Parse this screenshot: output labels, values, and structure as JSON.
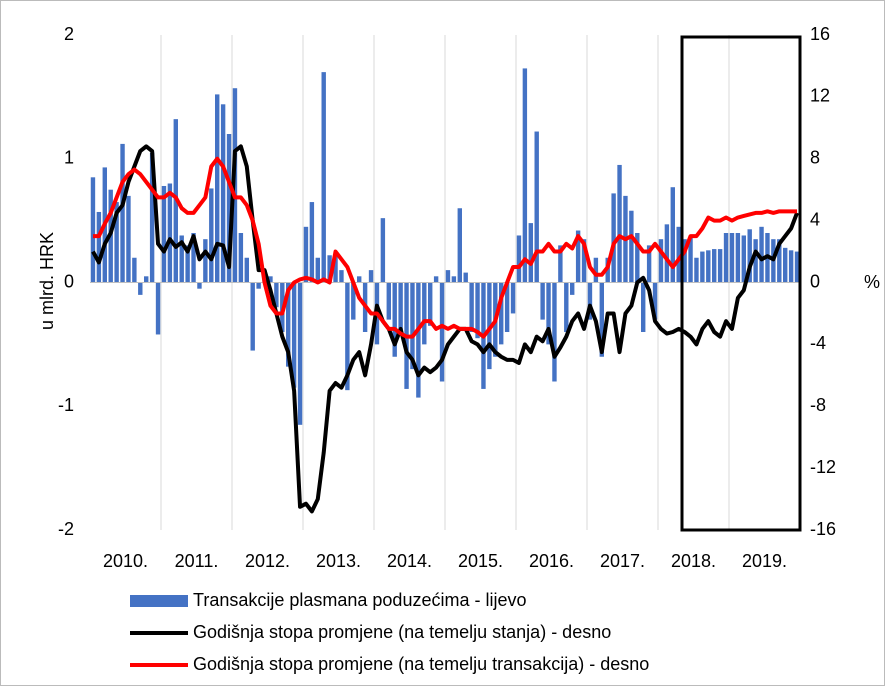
{
  "chart_data": {
    "type": "bar_line",
    "y_label": "u mlrd. HRK",
    "y2_label": "%",
    "categories": [
      null,
      null,
      null,
      null,
      null,
      null,
      "2010.",
      null,
      null,
      null,
      null,
      null,
      null,
      null,
      null,
      null,
      null,
      null,
      "2011.",
      null,
      null,
      null,
      null,
      null,
      null,
      null,
      null,
      null,
      null,
      null,
      "2012.",
      null,
      null,
      null,
      null,
      null,
      null,
      null,
      null,
      null,
      null,
      null,
      "2013.",
      null,
      null,
      null,
      null,
      null,
      null,
      null,
      null,
      null,
      null,
      null,
      "2014.",
      null,
      null,
      null,
      null,
      null,
      null,
      null,
      null,
      null,
      null,
      null,
      "2015.",
      null,
      null,
      null,
      null,
      null,
      null,
      null,
      null,
      null,
      null,
      null,
      "2016.",
      null,
      null,
      null,
      null,
      null,
      null,
      null,
      null,
      null,
      null,
      null,
      "2017.",
      null,
      null,
      null,
      null,
      null,
      null,
      null,
      null,
      null,
      null,
      null,
      "2018.",
      null,
      null,
      null,
      null,
      null,
      null,
      null,
      null,
      null,
      null,
      null,
      "2019.",
      null,
      null,
      null,
      null,
      null
    ],
    "series": [
      {
        "name": "Transakcije plasmana poduzećima - lijevo",
        "type": "bar",
        "color": "#4472c4",
        "values": [
          0.85,
          0.57,
          0.93,
          0.75,
          0.65,
          1.12,
          0.7,
          0.2,
          -0.1,
          0.05,
          1.05,
          -0.42,
          0.78,
          0.8,
          1.32,
          0.38,
          0.3,
          0.4,
          -0.05,
          0.35,
          0.76,
          1.52,
          1.44,
          1.2,
          1.57,
          0.4,
          0.2,
          -0.55,
          -0.05,
          0.1,
          0.05,
          -0.2,
          -0.4,
          -0.68,
          -0.85,
          -1.15,
          0.45,
          0.65,
          0.2,
          1.7,
          0.22,
          0.23,
          0.1,
          -0.87,
          -0.3,
          0.05,
          -0.4,
          0.1,
          -0.5,
          0.52,
          -0.3,
          -0.6,
          -0.4,
          -0.86,
          -0.7,
          -0.93,
          -0.5,
          -0.35,
          0.05,
          -0.8,
          0.1,
          0.05,
          0.6,
          0.08,
          -0.4,
          -0.45,
          -0.86,
          -0.7,
          -0.6,
          -0.5,
          -0.4,
          -0.25,
          0.38,
          1.73,
          0.48,
          1.22,
          -0.3,
          -0.5,
          -0.8,
          0.3,
          -0.4,
          -0.1,
          0.42,
          0.35,
          -0.3,
          0.2,
          -0.6,
          0.2,
          0.72,
          0.95,
          0.7,
          0.58,
          0.4,
          -0.4,
          0.3,
          -0.3,
          0.35,
          0.47,
          0.77,
          0.45,
          0.35,
          0.36,
          0.2,
          0.25,
          0.26,
          0.27,
          0.27,
          0.4,
          0.4,
          0.4,
          0.38,
          0.43,
          0.35,
          0.45,
          0.4,
          0.35,
          0.35,
          0.28,
          0.26,
          0.25
        ]
      },
      {
        "name": "Godišnja stopa promjene (na temelju stanja) - desno",
        "type": "line",
        "axis": "y2",
        "color": "#000000",
        "values": [
          2,
          1.3,
          2.5,
          3.2,
          4.5,
          5,
          6.5,
          7.5,
          8.5,
          8.8,
          8.5,
          2.5,
          2.0,
          2.8,
          2.3,
          2.6,
          2.0,
          3.0,
          1.5,
          2.0,
          1.5,
          2.5,
          2.4,
          1.0,
          8.5,
          8.8,
          7.5,
          4,
          0.8,
          0.8,
          -0.5,
          -2,
          -3.5,
          -4.5,
          -7,
          -14.5,
          -14.3,
          -14.8,
          -14,
          -11,
          -7,
          -6.5,
          -6.8,
          -6,
          -5,
          -4.5,
          -6,
          -4,
          -1.5,
          -2.5,
          -3,
          -4,
          -3,
          -4.5,
          -5,
          -6,
          -5.5,
          -5.8,
          -5.5,
          -5,
          -4,
          -3.5,
          -3,
          -3,
          -3.8,
          -4,
          -4.5,
          -4,
          -4.5,
          -4.8,
          -5,
          -5,
          -5.2,
          -4,
          -4.5,
          -3.5,
          -3.8,
          -3,
          -4.8,
          -4.2,
          -3.5,
          -2.5,
          -2,
          -3,
          -1.5,
          -2.5,
          -4.5,
          -2,
          -2,
          -4.5,
          -2,
          -1.5,
          0,
          0.3,
          -0.5,
          -2.5,
          -3,
          -3.3,
          -3.2,
          -3,
          -3.2,
          -3.5,
          -4,
          -3,
          -2.5,
          -3.2,
          -3.5,
          -2.5,
          -3,
          -1,
          -0.5,
          1,
          2,
          1.5,
          1.7,
          1.5,
          2.5,
          3,
          3.5,
          4.5
        ]
      },
      {
        "name": "Godišnja stopa promjene (na temelju transakcija) - desno",
        "type": "line",
        "axis": "y2",
        "color": "#ff0000",
        "values": [
          3,
          3,
          3.8,
          4.5,
          5.5,
          6.5,
          7,
          7.3,
          7,
          6.5,
          6,
          5.5,
          5.5,
          5.8,
          5.5,
          4.8,
          4.5,
          4.5,
          5,
          5.5,
          7.5,
          8,
          7.5,
          6.5,
          5.5,
          5.5,
          5,
          4,
          2.5,
          0,
          -1.5,
          -2,
          -2,
          -0.5,
          0,
          0.2,
          0.3,
          0.2,
          0,
          0.2,
          0,
          2,
          1.5,
          1,
          0,
          -1,
          -1.5,
          -2,
          -2,
          -2.5,
          -3,
          -3,
          -3.3,
          -3.5,
          -3.5,
          -3,
          -2.5,
          -2.5,
          -3,
          -2.8,
          -3,
          -2.8,
          -3,
          -3,
          -3,
          -3.2,
          -3.5,
          -3,
          -2.5,
          -1,
          0,
          1,
          1,
          1.5,
          1.2,
          2,
          2,
          2.5,
          2,
          2,
          2.5,
          2.2,
          3,
          2.5,
          1,
          0.5,
          0.5,
          1,
          2.5,
          3,
          2.8,
          3,
          2.5,
          2,
          2,
          2.5,
          2,
          1.5,
          1,
          1.5,
          2,
          3,
          3,
          3.5,
          4.2,
          4,
          4,
          4.2,
          4,
          4.2,
          4.3,
          4.4,
          4.5,
          4.5,
          4.6,
          4.5,
          4.6,
          4.6,
          4.6,
          4.6
        ]
      }
    ],
    "ylim": [
      -2,
      2
    ],
    "yticks": [
      -2,
      -1,
      0,
      1,
      2
    ],
    "y2lim": [
      -16,
      16
    ],
    "y2ticks": [
      -16,
      -12,
      -8,
      -4,
      0,
      4,
      8,
      12,
      16
    ],
    "legend": "bottom"
  }
}
